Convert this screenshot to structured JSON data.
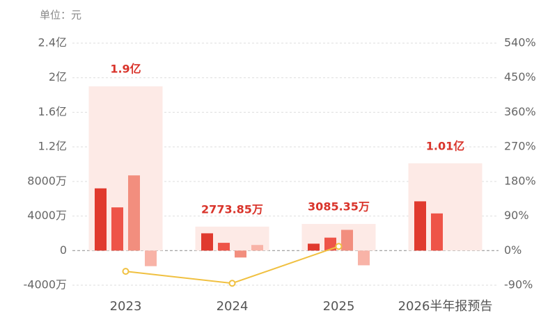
{
  "chart_data": {
    "type": "bar",
    "unit": "单位：元",
    "categories": [
      "2023",
      "2024",
      "2025",
      "2026半年报预告"
    ],
    "totals": {
      "values": [
        190000000,
        27738500,
        30853500,
        101000000
      ],
      "value_labels": [
        "1.9亿",
        "2773.85万",
        "3085.35万",
        "1.01亿"
      ],
      "color": "#fdeae6"
    },
    "series": [
      {
        "color": "#e03a2e",
        "values": [
          72000000,
          20000000,
          8000000,
          57000000
        ]
      },
      {
        "color": "#ee5448",
        "values": [
          50000000,
          9000000,
          15000000,
          43000000
        ]
      },
      {
        "color": "#f28e7e",
        "values": [
          87000000,
          -8000000,
          24000000,
          null
        ]
      },
      {
        "color": "#f8b3a7",
        "values": [
          -18000000,
          6500000,
          -17000000,
          null
        ]
      },
      {
        "type": "line",
        "axis": "y2",
        "color": "#f0c040",
        "values": [
          -54,
          -85,
          11,
          null
        ]
      }
    ],
    "ylim": [
      -40000000,
      240000000
    ],
    "yticks": [
      {
        "value": -40000000,
        "label": "-4000万"
      },
      0,
      {
        "value": 40000000,
        "label": "4000万"
      },
      {
        "value": 80000000,
        "label": "8000万"
      },
      {
        "value": 120000000,
        "label": "1.2亿"
      },
      {
        "value": 160000000,
        "label": "1.6亿"
      },
      {
        "value": 200000000,
        "label": "2亿"
      },
      {
        "value": 240000000,
        "label": "2.4亿"
      }
    ],
    "y2lim": [
      -90,
      540
    ],
    "y2ticks": [
      {
        "value": -90,
        "label": "-90%"
      },
      {
        "value": 0,
        "label": "0%"
      },
      {
        "value": 90,
        "label": "90%"
      },
      {
        "value": 180,
        "label": "180%"
      },
      {
        "value": 270,
        "label": "270%"
      },
      {
        "value": 360,
        "label": "360%"
      },
      {
        "value": 450,
        "label": "450%"
      },
      {
        "value": 540,
        "label": "540%"
      }
    ],
    "grid": true
  }
}
